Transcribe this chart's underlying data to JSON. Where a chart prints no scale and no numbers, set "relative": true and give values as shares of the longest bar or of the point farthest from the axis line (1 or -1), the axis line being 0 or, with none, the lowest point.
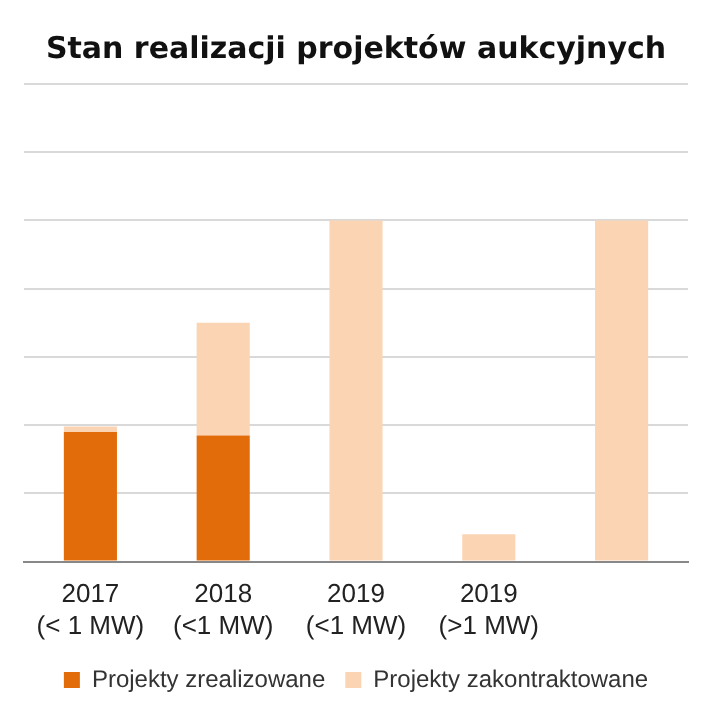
{
  "chart_data": {
    "type": "bar",
    "title": "Stan realizacji projektów aukcyjnych",
    "categories": [
      "2017 (< 1 MW)",
      "2018 (<1 MW)",
      "2019 (<1 MW)",
      "2019 (>1 MW)",
      null
    ],
    "series": [
      {
        "name": "Projekty zrealizowane",
        "color": "#e36c0a",
        "values": [
          0.38,
          0.37,
          0,
          0,
          0
        ]
      },
      {
        "name": "Projekty zakontraktowane",
        "color": "#fbd4b4",
        "values": [
          0.016,
          0.33,
          1,
          0.08,
          1
        ]
      }
    ],
    "stacked": true,
    "relative": true,
    "grid": "y",
    "legend": "bottom"
  }
}
